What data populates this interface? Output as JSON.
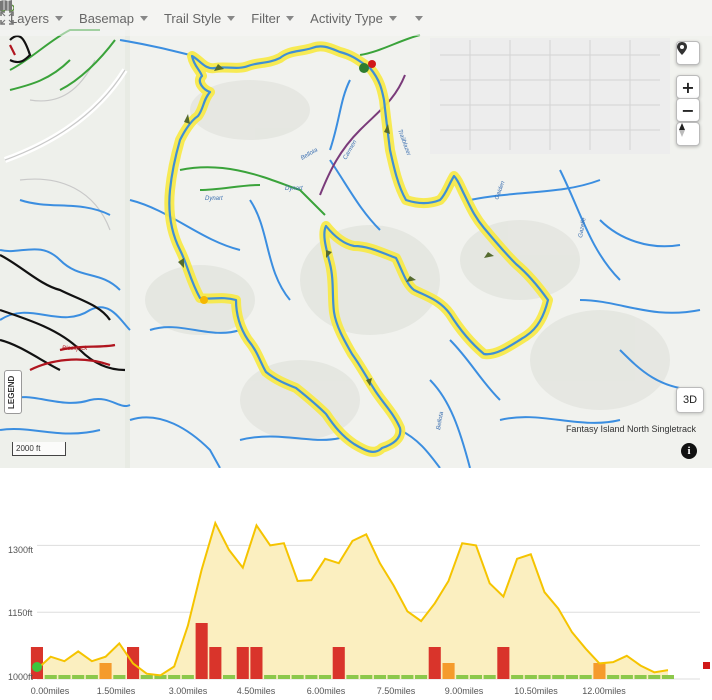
{
  "toolbar": {
    "layers": "Layers",
    "basemap": "Basemap",
    "trail_style": "Trail Style",
    "filter": "Filter",
    "activity_type": "Activity Type"
  },
  "map": {
    "legend_label": "LEGEND",
    "scale_label": "2000 ft",
    "btn_3d": "3D",
    "attribution": "Fantasy Island North Singletrack",
    "info_icon": "i",
    "route_color": "#f2c200",
    "trail_color": "#3f8fd6",
    "colors": {
      "blue_trail": "#3b8ee0",
      "green_trail": "#3aa33a",
      "black_trail": "#111111",
      "red_trail": "#b0151f",
      "purple_trail": "#7a3b7a"
    },
    "trail_labels": [
      "Bellota",
      "Dynart",
      "Dynart",
      "Carmen",
      "Trailblazer",
      "Gaiden",
      "Gazelle",
      "Bellota",
      "Blackjack"
    ]
  },
  "elevation_chart": {
    "y_labels": [
      "1300ft",
      "1150ft",
      "1000ft"
    ],
    "x_labels": [
      "0.00miles",
      "1.50miles",
      "3.00miles",
      "4.50miles",
      "6.00miles",
      "7.50miles",
      "9.00miles",
      "10.50miles",
      "12.00miles"
    ],
    "line_color": "#f5c400",
    "fill_color": "#fbefc0"
  },
  "chart_data": {
    "type": "area",
    "x_unit": "miles",
    "y_unit": "ft",
    "ylim": [
      1000,
      1375
    ],
    "xlim": [
      0,
      14.5
    ],
    "x": [
      0.0,
      0.3,
      0.6,
      0.9,
      1.2,
      1.5,
      1.8,
      2.1,
      2.4,
      2.7,
      3.0,
      3.3,
      3.6,
      3.9,
      4.2,
      4.5,
      4.8,
      5.1,
      5.4,
      5.7,
      6.0,
      6.3,
      6.6,
      6.9,
      7.2,
      7.5,
      7.8,
      8.1,
      8.4,
      8.7,
      9.0,
      9.3,
      9.6,
      9.9,
      10.2,
      10.5,
      10.8,
      11.1,
      11.4,
      11.7,
      12.0,
      12.3,
      12.6,
      12.9,
      13.2,
      13.5,
      13.8
    ],
    "y": [
      1022,
      1050,
      1040,
      1062,
      1040,
      1050,
      1080,
      1035,
      1012,
      1008,
      1028,
      1120,
      1245,
      1350,
      1290,
      1250,
      1345,
      1300,
      1305,
      1220,
      1222,
      1270,
      1260,
      1310,
      1325,
      1260,
      1210,
      1152,
      1130,
      1170,
      1220,
      1305,
      1300,
      1215,
      1185,
      1270,
      1280,
      1195,
      1158,
      1105,
      1068,
      1035,
      1038,
      1052,
      1030,
      1015,
      1020
    ],
    "grade_bars": {
      "values": [
        4,
        0,
        0,
        0,
        0,
        2,
        0,
        4,
        0,
        0,
        0,
        0,
        7,
        4,
        0,
        4,
        4,
        0,
        0,
        0,
        0,
        0,
        4,
        0,
        0,
        0,
        0,
        0,
        0,
        4,
        2,
        0,
        0,
        0,
        4,
        0,
        0,
        0,
        0,
        0,
        0,
        2,
        0,
        0,
        0,
        0,
        0
      ],
      "scale": "grade"
    }
  }
}
